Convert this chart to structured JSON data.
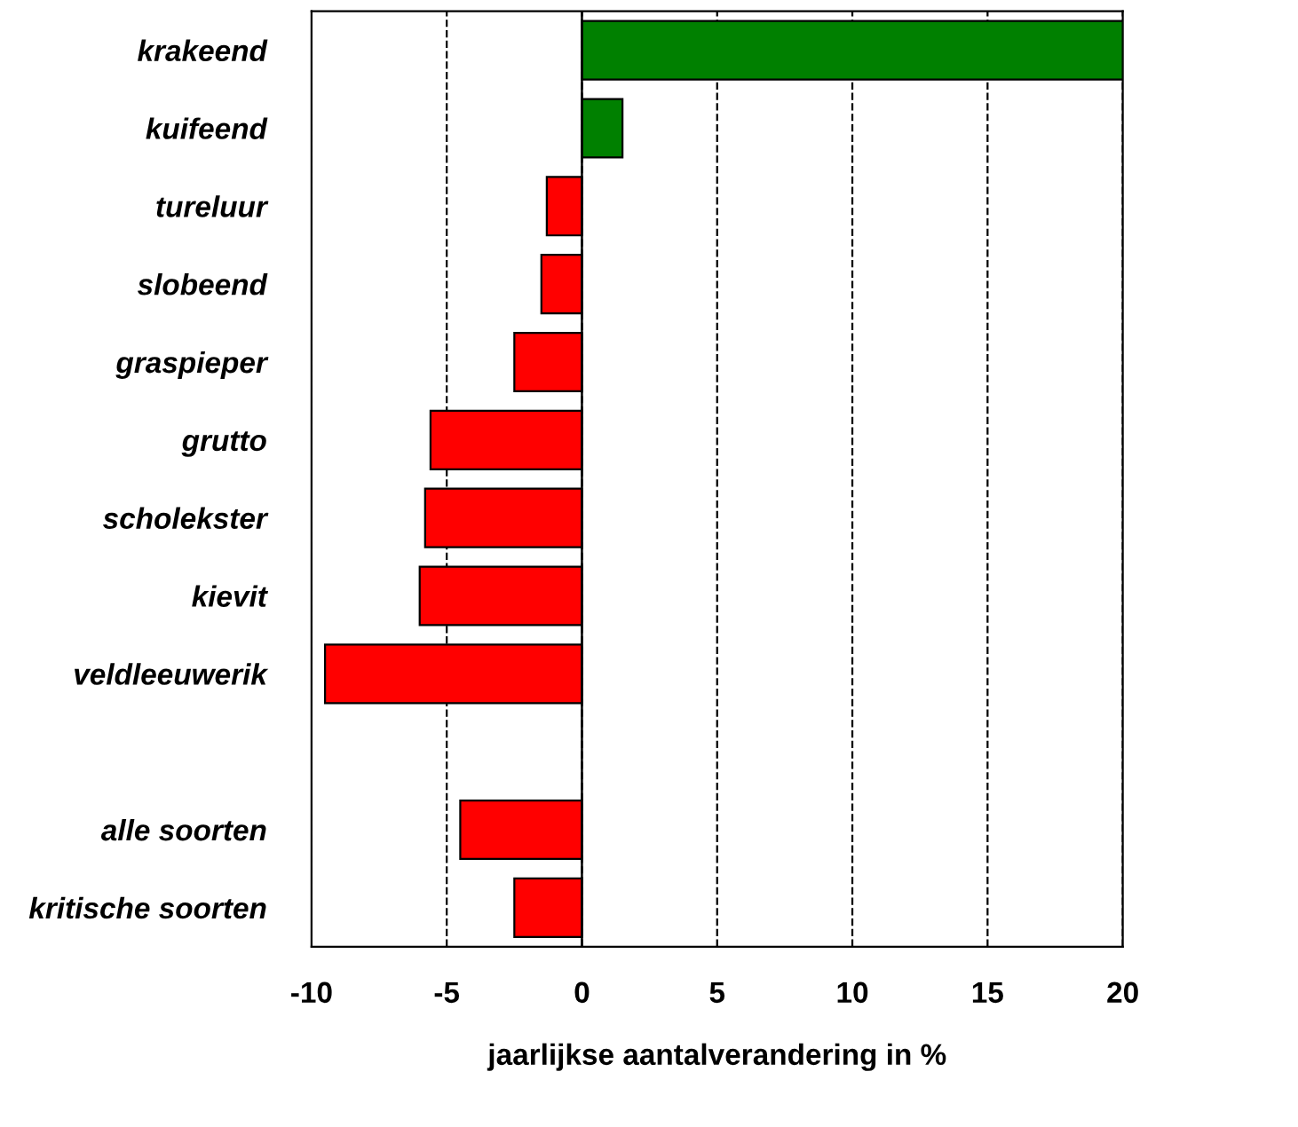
{
  "chart_data": {
    "type": "bar",
    "orientation": "horizontal",
    "xlabel": "jaarlijkse aantalverandering in %",
    "categories": [
      "krakeend",
      "kuifeend",
      "tureluur",
      "slobeend",
      "graspieper",
      "grutto",
      "scholekster",
      "kievit",
      "veldleeuwerik",
      null,
      "alle soorten",
      "kritische soorten"
    ],
    "values": [
      20,
      1.5,
      -1.3,
      -1.5,
      -2.5,
      -5.6,
      -5.8,
      -6.0,
      -9.5,
      null,
      -4.5,
      -2.5
    ],
    "colors": [
      "#008000",
      "#008000",
      "#ff0000",
      "#ff0000",
      "#ff0000",
      "#ff0000",
      "#ff0000",
      "#ff0000",
      "#ff0000",
      "#ff0000",
      "#ff0000",
      "#ff0000"
    ],
    "xlim": [
      -10,
      20
    ],
    "xticks": [
      -10,
      -5,
      0,
      5,
      10,
      15,
      20
    ],
    "grid": "x",
    "ref_lines": [
      {
        "axis": "x",
        "value": 0,
        "color": "#000000",
        "line_style": "solid"
      }
    ]
  }
}
